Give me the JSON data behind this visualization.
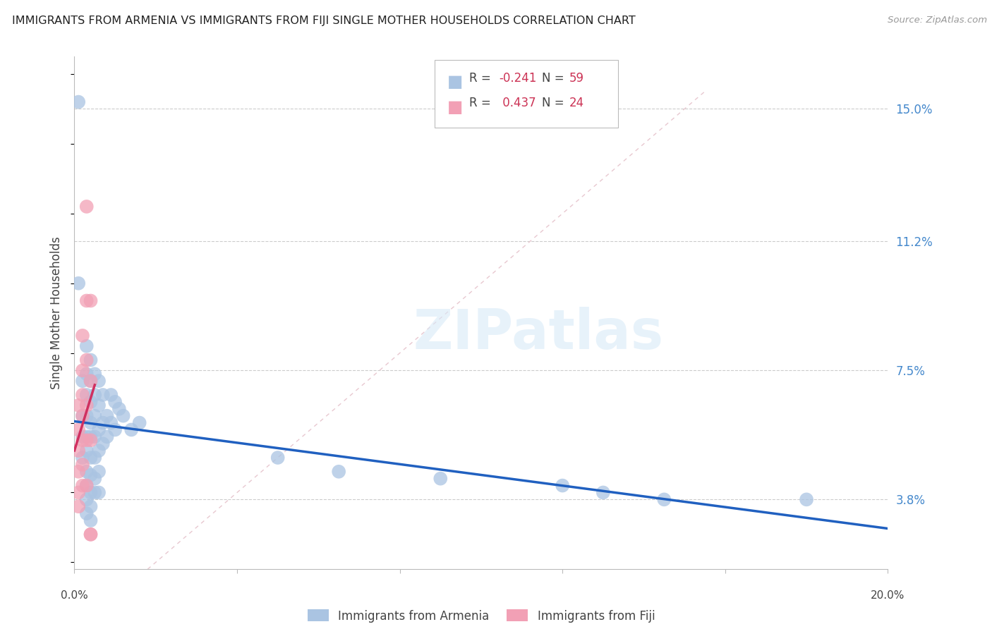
{
  "title": "IMMIGRANTS FROM ARMENIA VS IMMIGRANTS FROM FIJI SINGLE MOTHER HOUSEHOLDS CORRELATION CHART",
  "source": "Source: ZipAtlas.com",
  "ylabel": "Single Mother Households",
  "ytick_labels": [
    "3.8%",
    "7.5%",
    "11.2%",
    "15.0%"
  ],
  "ytick_values": [
    0.038,
    0.075,
    0.112,
    0.15
  ],
  "xlim": [
    0.0,
    0.2
  ],
  "ylim": [
    0.018,
    0.165
  ],
  "legend_r_armenia": "-0.241",
  "legend_n_armenia": "59",
  "legend_r_fiji": "0.437",
  "legend_n_fiji": "24",
  "armenia_color": "#aac4e2",
  "fiji_color": "#f2a0b5",
  "armenia_line_color": "#2060c0",
  "fiji_line_color": "#d03060",
  "diagonal_color": "#d8d8d8",
  "watermark": "ZIPatlas",
  "armenia_scatter": [
    [
      0.001,
      0.152
    ],
    [
      0.001,
      0.1
    ],
    [
      0.002,
      0.072
    ],
    [
      0.002,
      0.062
    ],
    [
      0.002,
      0.056
    ],
    [
      0.002,
      0.05
    ],
    [
      0.003,
      0.082
    ],
    [
      0.003,
      0.074
    ],
    [
      0.003,
      0.068
    ],
    [
      0.003,
      0.062
    ],
    [
      0.003,
      0.056
    ],
    [
      0.003,
      0.052
    ],
    [
      0.003,
      0.046
    ],
    [
      0.003,
      0.042
    ],
    [
      0.003,
      0.038
    ],
    [
      0.003,
      0.034
    ],
    [
      0.004,
      0.078
    ],
    [
      0.004,
      0.072
    ],
    [
      0.004,
      0.066
    ],
    [
      0.004,
      0.06
    ],
    [
      0.004,
      0.056
    ],
    [
      0.004,
      0.05
    ],
    [
      0.004,
      0.045
    ],
    [
      0.004,
      0.04
    ],
    [
      0.004,
      0.036
    ],
    [
      0.004,
      0.032
    ],
    [
      0.005,
      0.074
    ],
    [
      0.005,
      0.068
    ],
    [
      0.005,
      0.062
    ],
    [
      0.005,
      0.056
    ],
    [
      0.005,
      0.05
    ],
    [
      0.005,
      0.044
    ],
    [
      0.005,
      0.04
    ],
    [
      0.006,
      0.072
    ],
    [
      0.006,
      0.065
    ],
    [
      0.006,
      0.058
    ],
    [
      0.006,
      0.052
    ],
    [
      0.006,
      0.046
    ],
    [
      0.006,
      0.04
    ],
    [
      0.007,
      0.068
    ],
    [
      0.007,
      0.06
    ],
    [
      0.007,
      0.054
    ],
    [
      0.008,
      0.062
    ],
    [
      0.008,
      0.056
    ],
    [
      0.009,
      0.068
    ],
    [
      0.009,
      0.06
    ],
    [
      0.01,
      0.066
    ],
    [
      0.01,
      0.058
    ],
    [
      0.011,
      0.064
    ],
    [
      0.012,
      0.062
    ],
    [
      0.014,
      0.058
    ],
    [
      0.016,
      0.06
    ],
    [
      0.05,
      0.05
    ],
    [
      0.065,
      0.046
    ],
    [
      0.09,
      0.044
    ],
    [
      0.12,
      0.042
    ],
    [
      0.13,
      0.04
    ],
    [
      0.145,
      0.038
    ],
    [
      0.18,
      0.038
    ]
  ],
  "fiji_scatter": [
    [
      0.001,
      0.065
    ],
    [
      0.001,
      0.058
    ],
    [
      0.001,
      0.052
    ],
    [
      0.001,
      0.046
    ],
    [
      0.001,
      0.04
    ],
    [
      0.001,
      0.036
    ],
    [
      0.002,
      0.085
    ],
    [
      0.002,
      0.075
    ],
    [
      0.002,
      0.068
    ],
    [
      0.002,
      0.062
    ],
    [
      0.002,
      0.055
    ],
    [
      0.002,
      0.048
    ],
    [
      0.002,
      0.042
    ],
    [
      0.003,
      0.122
    ],
    [
      0.003,
      0.095
    ],
    [
      0.003,
      0.078
    ],
    [
      0.003,
      0.065
    ],
    [
      0.003,
      0.055
    ],
    [
      0.003,
      0.042
    ],
    [
      0.004,
      0.095
    ],
    [
      0.004,
      0.072
    ],
    [
      0.004,
      0.055
    ],
    [
      0.004,
      0.028
    ],
    [
      0.004,
      0.028
    ]
  ]
}
